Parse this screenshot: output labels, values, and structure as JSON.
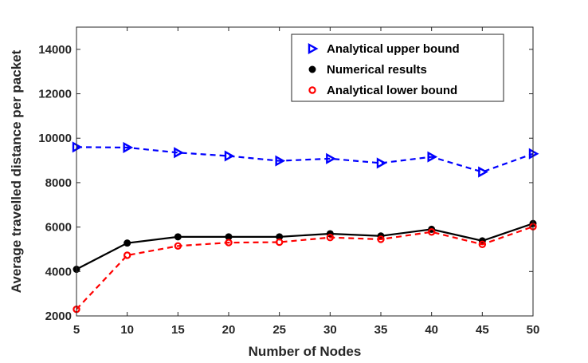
{
  "chart_data": {
    "type": "line",
    "xlabel": "Number of Nodes",
    "ylabel": "Average travelled distance per packet",
    "x": [
      5,
      10,
      15,
      20,
      25,
      30,
      35,
      40,
      45,
      50
    ],
    "xlim": [
      5,
      50
    ],
    "ylim": [
      2000,
      15000
    ],
    "xticks": [
      5,
      10,
      15,
      20,
      25,
      30,
      35,
      40,
      45,
      50
    ],
    "yticks": [
      2000,
      4000,
      6000,
      8000,
      10000,
      12000,
      14000
    ],
    "grid": false,
    "legend_position": "top-right",
    "series": [
      {
        "name": "Analytical upper bound",
        "values": [
          9600,
          9580,
          9350,
          9200,
          8980,
          9080,
          8880,
          9160,
          8480,
          9300
        ],
        "color": "#0000ff",
        "line_style": "dashed",
        "marker": "triangle-right"
      },
      {
        "name": "Numerical results",
        "values": [
          4100,
          5280,
          5560,
          5560,
          5560,
          5700,
          5600,
          5900,
          5380,
          6160
        ],
        "color": "#000000",
        "line_style": "solid",
        "marker": "filled-circle"
      },
      {
        "name": "Analytical lower bound",
        "values": [
          2300,
          4730,
          5150,
          5300,
          5320,
          5530,
          5450,
          5780,
          5220,
          6020
        ],
        "color": "#ff0000",
        "line_style": "dashed",
        "marker": "open-circle"
      }
    ]
  }
}
